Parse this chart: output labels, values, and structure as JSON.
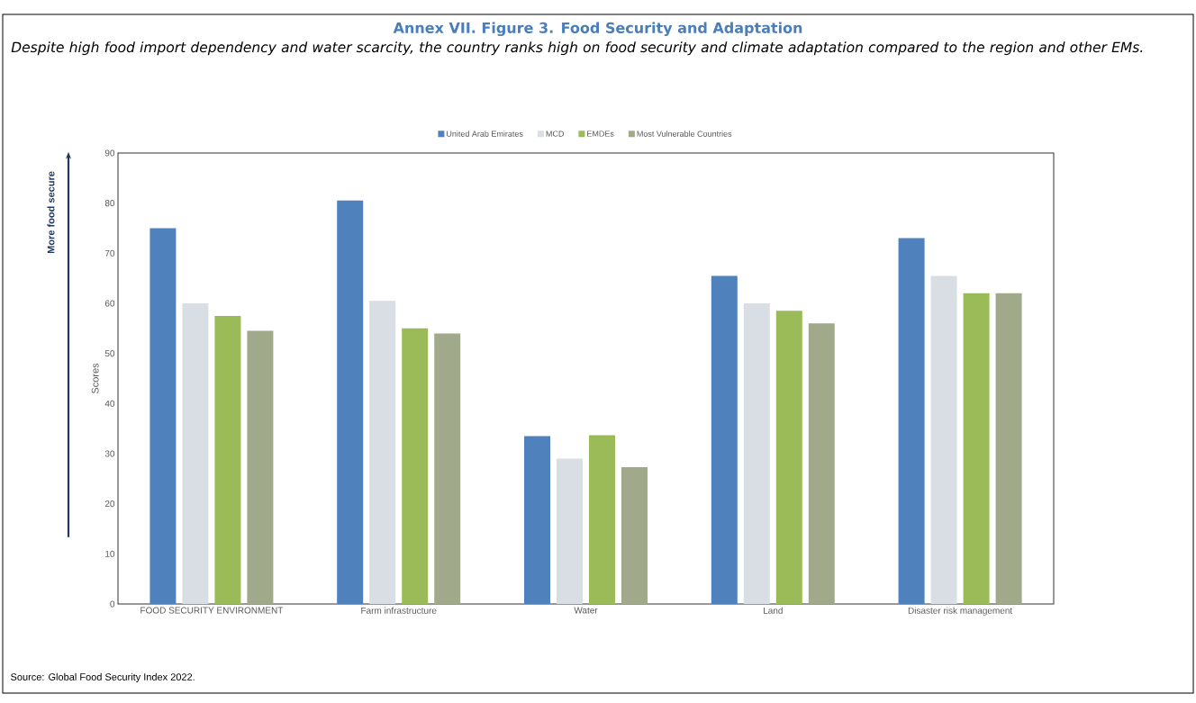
{
  "chart_data": {
    "type": "bar",
    "title": "Annex VII. Figure 3. Food Security and Adaptation",
    "subtitle": "Despite high food import dependency and water scarcity, the country ranks high on food security and climate adaptation compared to the region and other EMs.",
    "ylabel": "Scores",
    "categories": [
      "FOOD SECURITY ENVIRONMENT",
      "Farm infrastructure",
      "Water",
      "Land",
      "Disaster risk management"
    ],
    "series": [
      {
        "name": "United Arab Emirates",
        "color": "#4f81bd",
        "values": [
          75,
          80.5,
          33.5,
          65.5,
          73
        ]
      },
      {
        "name": "MCD",
        "color": "#d9dde4",
        "values": [
          60,
          60.5,
          29,
          60,
          65.5
        ]
      },
      {
        "name": "EMDEs",
        "color": "#9bbb59",
        "values": [
          57.5,
          55,
          33.7,
          58.5,
          62
        ]
      },
      {
        "name": "Most Vulnerable Countries",
        "color": "#a0aa8b",
        "values": [
          54.5,
          54,
          27.3,
          56,
          62
        ]
      }
    ],
    "ylim": [
      0,
      90
    ],
    "yticks": [
      0,
      10,
      20,
      30,
      40,
      50,
      60,
      70,
      80,
      90
    ],
    "legend": "top",
    "grid": false,
    "annotations": [
      "More food secure",
      "Source: Global Food Security Index 2022."
    ]
  }
}
